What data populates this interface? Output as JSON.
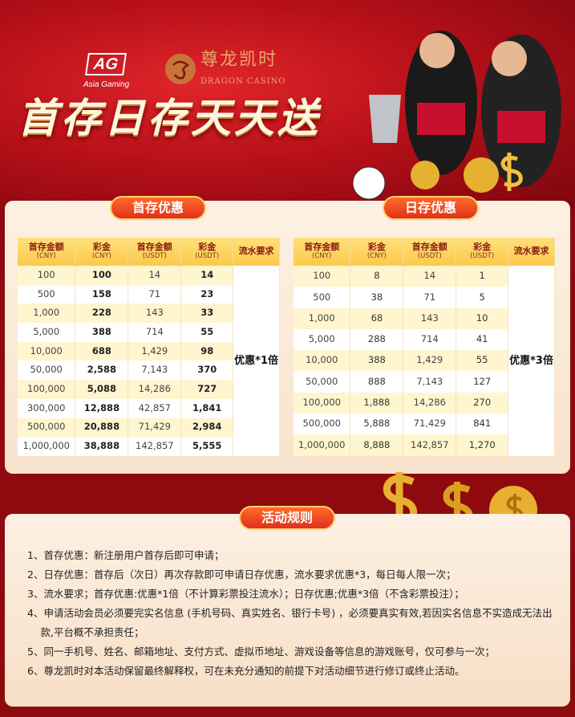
{
  "header": {
    "ag_logo": "AG",
    "ag_sub": "Asia Gaming",
    "brand_cn": "尊龙凯时",
    "brand_en": "DRAGON CASINO",
    "headline": "首存日存天天送"
  },
  "colors": {
    "banner": "#c0121c",
    "panel": "#fdf1e2",
    "header_cell": "#fbd05a",
    "tab": "#e8401e"
  },
  "first_deposit": {
    "title": "首存优惠",
    "headers": [
      [
        "首存金额",
        "(CNY)"
      ],
      [
        "彩金",
        "(CNY)"
      ],
      [
        "首存金额",
        "(USDT)"
      ],
      [
        "彩金",
        "(USDT)"
      ],
      [
        "流水要求",
        ""
      ]
    ],
    "rows": [
      [
        "100",
        "100",
        "14",
        "14"
      ],
      [
        "500",
        "158",
        "71",
        "23"
      ],
      [
        "1,000",
        "228",
        "143",
        "33"
      ],
      [
        "5,000",
        "388",
        "714",
        "55"
      ],
      [
        "10,000",
        "688",
        "1,429",
        "98"
      ],
      [
        "50,000",
        "2,588",
        "7,143",
        "370"
      ],
      [
        "100,000",
        "5,088",
        "14,286",
        "727"
      ],
      [
        "300,000",
        "12,888",
        "42,857",
        "1,841"
      ],
      [
        "500,000",
        "20,888",
        "71,429",
        "2,984"
      ],
      [
        "1,000,000",
        "38,888",
        "142,857",
        "5,555"
      ]
    ],
    "requirement": "优惠*1倍"
  },
  "daily_deposit": {
    "title": "日存优惠",
    "headers": [
      [
        "首存金额",
        "(CNY)"
      ],
      [
        "彩金",
        "(CNY)"
      ],
      [
        "首存金额",
        "(USDT)"
      ],
      [
        "彩金",
        "(USDT)"
      ],
      [
        "流水要求",
        ""
      ]
    ],
    "rows": [
      [
        "100",
        "8",
        "14",
        "1"
      ],
      [
        "500",
        "38",
        "71",
        "5"
      ],
      [
        "1,000",
        "68",
        "143",
        "10"
      ],
      [
        "5,000",
        "288",
        "714",
        "41"
      ],
      [
        "10,000",
        "388",
        "1,429",
        "55"
      ],
      [
        "50,000",
        "888",
        "7,143",
        "127"
      ],
      [
        "100,000",
        "1,888",
        "14,286",
        "270"
      ],
      [
        "500,000",
        "5,888",
        "71,429",
        "841"
      ],
      [
        "1,000,000",
        "8,888",
        "142,857",
        "1,270"
      ]
    ],
    "requirement": "优惠*3倍"
  },
  "rules": {
    "title": "活动规则",
    "lines": [
      "1、首存优惠：新注册用户首存后即可申请；",
      "2、日存优惠：首存后（次日）再次存款即可申请日存优惠，流水要求优惠*3，每日每人限一次；",
      "3、流水要求；首存优惠:优惠*1倍（不计算彩票投注流水）；日存优惠;优惠*3倍（不含彩票投注）；",
      "4、申请活动会员必须要完实名信息 (手机号码、真实姓名、银行卡号) ，必须要真实有效,若因实名信息不实造成无法出",
      "　  款,平台概不承担责任；",
      "5、同一手机号、姓名、邮箱地址、支付方式、虚拟币地址、游戏设备等信息的游戏账号，仅可参与一次；",
      "6、尊龙凯时对本活动保留最终解释权，可在未充分通知的前提下对活动细节进行修订或终止活动。"
    ]
  }
}
